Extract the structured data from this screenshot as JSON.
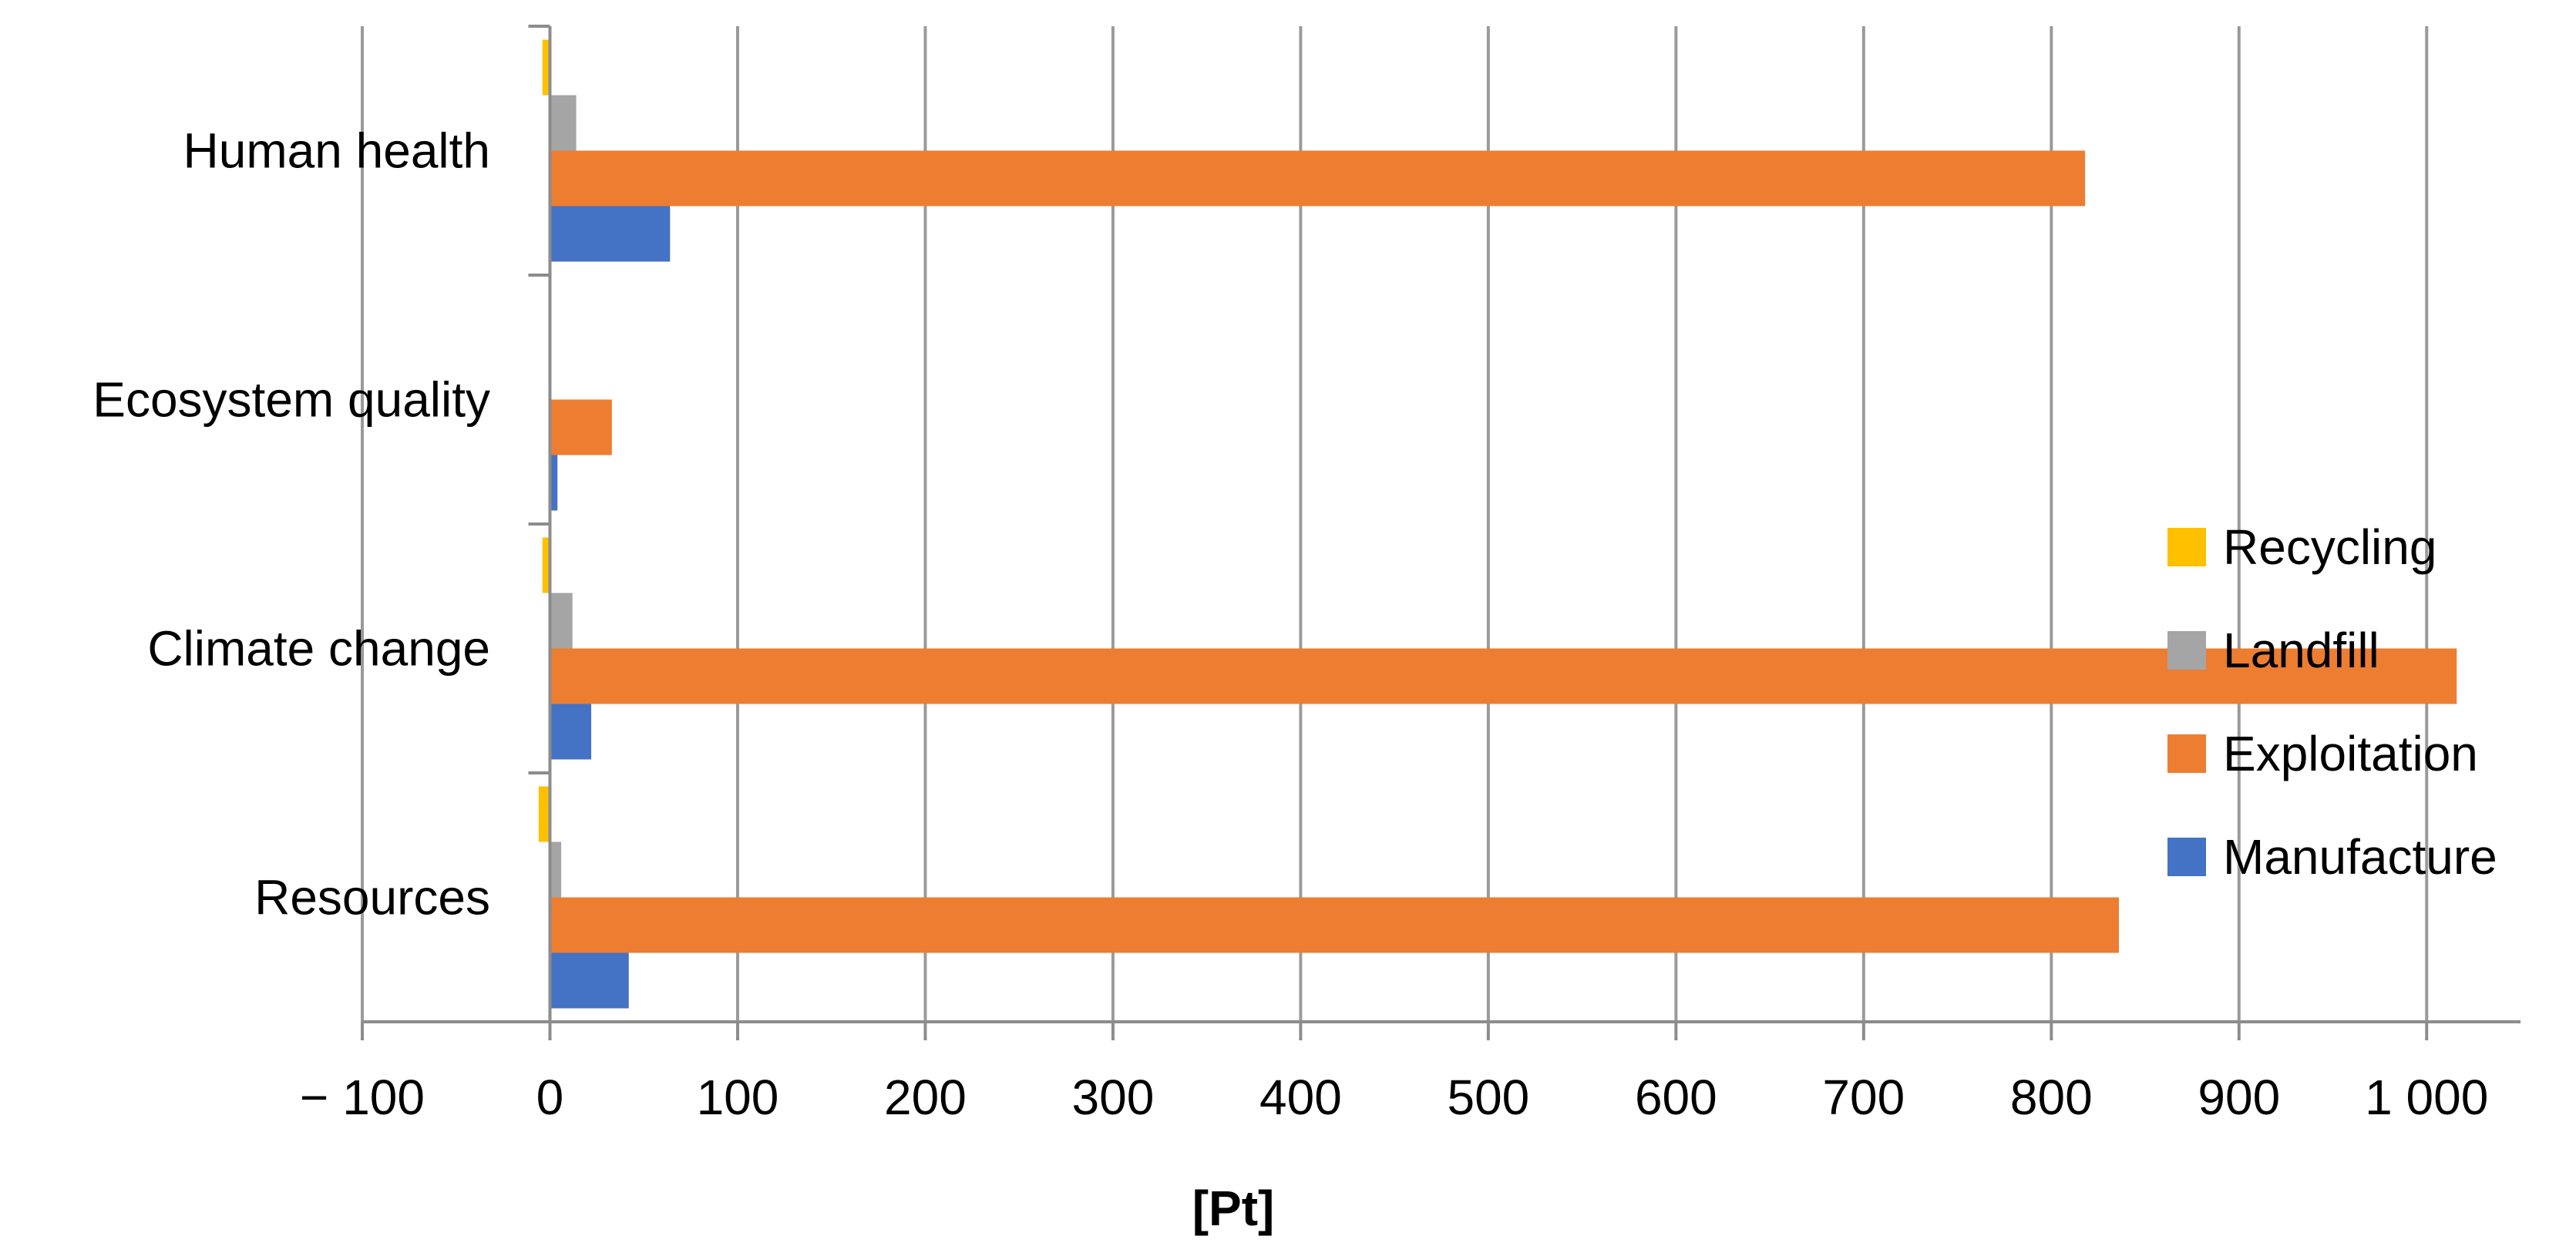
{
  "chart_data": {
    "type": "bar",
    "orientation": "horizontal",
    "title": "",
    "xlabel": "[Pt]",
    "ylabel": "",
    "xlim": [
      -100,
      1050
    ],
    "x_ticks": [
      -100,
      0,
      100,
      200,
      300,
      400,
      500,
      600,
      700,
      800,
      900,
      1000
    ],
    "x_tick_labels": [
      "− 100",
      "0",
      "100",
      "200",
      "300",
      "400",
      "500",
      "600",
      "700",
      "800",
      "900",
      "1 000"
    ],
    "grid": true,
    "legend_position": "right",
    "categories": [
      "Resources",
      "Climate change",
      "Ecosystem quality",
      "Human health"
    ],
    "series": [
      {
        "name": "Recycling",
        "color": "#FFC000",
        "values": [
          -6,
          -4,
          0,
          -4
        ]
      },
      {
        "name": "Landfill",
        "color": "#A5A5A5",
        "values": [
          6,
          12,
          0,
          14
        ]
      },
      {
        "name": "Exploitation",
        "color": "#ED7D31",
        "values": [
          836,
          1016,
          33,
          818
        ]
      },
      {
        "name": "Manufacture",
        "color": "#4472C4",
        "values": [
          42,
          22,
          4,
          64
        ]
      }
    ]
  }
}
